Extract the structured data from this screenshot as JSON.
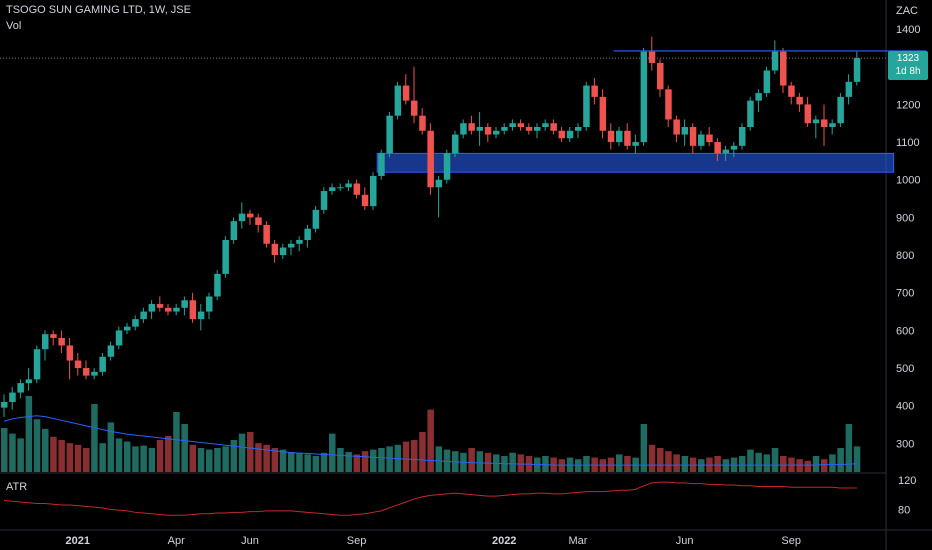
{
  "header": {
    "title": "TSOGO SUN GAMING LTD, 1W, JSE",
    "vol_label": "Vol",
    "atr_label": "ATR",
    "currency": "ZAC"
  },
  "last_price": {
    "value": "1323",
    "countdown": "1d 8h"
  },
  "colors": {
    "up": "#26a69a",
    "down": "#ef5350",
    "zone": "#2962ff",
    "line": "#2962ff",
    "atr": "#c62828"
  },
  "chart_data": {
    "type": "candlestick",
    "price_axis": {
      "ticks": [
        1400,
        1300,
        1200,
        1100,
        1000,
        900,
        800,
        700,
        600,
        500,
        400,
        300
      ],
      "range": [
        240,
        1440
      ]
    },
    "atr_axis": {
      "ticks": [
        120,
        80
      ],
      "range": [
        52,
        128
      ]
    },
    "x_ticks": [
      {
        "label": "2021",
        "index": 9,
        "bold": true
      },
      {
        "label": "Apr",
        "index": 21
      },
      {
        "label": "Jun",
        "index": 30
      },
      {
        "label": "Sep",
        "index": 43
      },
      {
        "label": "2022",
        "index": 61,
        "bold": true
      },
      {
        "label": "Mar",
        "index": 70
      },
      {
        "label": "Jun",
        "index": 83
      },
      {
        "label": "Sep",
        "index": 96
      }
    ],
    "resistance_level": {
      "value": 1342,
      "from_index": 78,
      "to_index": 110
    },
    "support_zone": {
      "low": 1020,
      "high": 1070,
      "from_index": 46,
      "to_index": 108
    },
    "candles": [
      [
        395,
        430,
        370,
        410
      ],
      [
        410,
        450,
        390,
        435
      ],
      [
        435,
        470,
        420,
        460
      ],
      [
        460,
        500,
        440,
        470
      ],
      [
        470,
        560,
        460,
        550
      ],
      [
        550,
        600,
        520,
        590
      ],
      [
        590,
        600,
        560,
        580
      ],
      [
        580,
        600,
        540,
        560
      ],
      [
        560,
        580,
        470,
        520
      ],
      [
        520,
        540,
        480,
        500
      ],
      [
        500,
        520,
        470,
        480
      ],
      [
        480,
        500,
        470,
        490
      ],
      [
        490,
        540,
        480,
        530
      ],
      [
        530,
        570,
        520,
        560
      ],
      [
        560,
        610,
        550,
        600
      ],
      [
        600,
        620,
        590,
        610
      ],
      [
        610,
        640,
        600,
        630
      ],
      [
        630,
        660,
        620,
        650
      ],
      [
        650,
        680,
        630,
        670
      ],
      [
        670,
        690,
        650,
        660
      ],
      [
        660,
        670,
        640,
        650
      ],
      [
        650,
        670,
        640,
        660
      ],
      [
        660,
        690,
        640,
        680
      ],
      [
        680,
        700,
        620,
        630
      ],
      [
        630,
        670,
        600,
        650
      ],
      [
        650,
        700,
        630,
        690
      ],
      [
        690,
        760,
        680,
        750
      ],
      [
        750,
        850,
        740,
        840
      ],
      [
        840,
        900,
        830,
        890
      ],
      [
        890,
        940,
        870,
        910
      ],
      [
        910,
        920,
        880,
        900
      ],
      [
        900,
        910,
        860,
        880
      ],
      [
        880,
        890,
        820,
        830
      ],
      [
        830,
        840,
        780,
        800
      ],
      [
        800,
        830,
        790,
        820
      ],
      [
        820,
        840,
        800,
        830
      ],
      [
        830,
        850,
        810,
        840
      ],
      [
        840,
        880,
        820,
        870
      ],
      [
        870,
        930,
        860,
        920
      ],
      [
        920,
        980,
        910,
        970
      ],
      [
        970,
        990,
        960,
        980
      ],
      [
        980,
        990,
        970,
        980
      ],
      [
        980,
        1000,
        970,
        990
      ],
      [
        990,
        1000,
        950,
        960
      ],
      [
        960,
        980,
        920,
        930
      ],
      [
        930,
        1020,
        920,
        1010
      ],
      [
        1010,
        1080,
        1000,
        1070
      ],
      [
        1070,
        1180,
        1060,
        1170
      ],
      [
        1170,
        1260,
        1160,
        1250
      ],
      [
        1250,
        1280,
        1200,
        1210
      ],
      [
        1210,
        1300,
        1150,
        1170
      ],
      [
        1170,
        1190,
        1120,
        1130
      ],
      [
        1130,
        1150,
        960,
        980
      ],
      [
        980,
        1010,
        900,
        1000
      ],
      [
        1000,
        1080,
        990,
        1070
      ],
      [
        1070,
        1130,
        1060,
        1120
      ],
      [
        1120,
        1160,
        1110,
        1150
      ],
      [
        1150,
        1170,
        1120,
        1130
      ],
      [
        1130,
        1180,
        1090,
        1140
      ],
      [
        1140,
        1150,
        1100,
        1120
      ],
      [
        1120,
        1140,
        1110,
        1130
      ],
      [
        1130,
        1150,
        1120,
        1140
      ],
      [
        1140,
        1160,
        1130,
        1150
      ],
      [
        1150,
        1160,
        1130,
        1140
      ],
      [
        1140,
        1150,
        1120,
        1130
      ],
      [
        1130,
        1150,
        1110,
        1140
      ],
      [
        1140,
        1160,
        1130,
        1150
      ],
      [
        1150,
        1160,
        1120,
        1130
      ],
      [
        1130,
        1140,
        1100,
        1110
      ],
      [
        1110,
        1140,
        1100,
        1130
      ],
      [
        1130,
        1150,
        1110,
        1140
      ],
      [
        1140,
        1260,
        1130,
        1250
      ],
      [
        1250,
        1270,
        1200,
        1220
      ],
      [
        1220,
        1240,
        1110,
        1130
      ],
      [
        1130,
        1150,
        1080,
        1100
      ],
      [
        1100,
        1140,
        1090,
        1130
      ],
      [
        1130,
        1150,
        1080,
        1090
      ],
      [
        1090,
        1120,
        1070,
        1100
      ],
      [
        1100,
        1350,
        1090,
        1340
      ],
      [
        1340,
        1380,
        1290,
        1310
      ],
      [
        1310,
        1320,
        1220,
        1240
      ],
      [
        1240,
        1250,
        1140,
        1160
      ],
      [
        1160,
        1170,
        1100,
        1120
      ],
      [
        1120,
        1160,
        1090,
        1140
      ],
      [
        1140,
        1150,
        1070,
        1090
      ],
      [
        1090,
        1130,
        1080,
        1120
      ],
      [
        1120,
        1140,
        1090,
        1100
      ],
      [
        1100,
        1110,
        1050,
        1070
      ],
      [
        1070,
        1090,
        1050,
        1080
      ],
      [
        1080,
        1100,
        1060,
        1090
      ],
      [
        1090,
        1150,
        1080,
        1140
      ],
      [
        1140,
        1220,
        1130,
        1210
      ],
      [
        1210,
        1240,
        1180,
        1230
      ],
      [
        1230,
        1300,
        1220,
        1290
      ],
      [
        1290,
        1370,
        1280,
        1340
      ],
      [
        1340,
        1350,
        1230,
        1250
      ],
      [
        1250,
        1260,
        1200,
        1220
      ],
      [
        1220,
        1230,
        1180,
        1200
      ],
      [
        1200,
        1220,
        1140,
        1150
      ],
      [
        1150,
        1170,
        1110,
        1160
      ],
      [
        1160,
        1200,
        1090,
        1140
      ],
      [
        1140,
        1160,
        1120,
        1150
      ],
      [
        1150,
        1230,
        1140,
        1220
      ],
      [
        1220,
        1280,
        1200,
        1260
      ],
      [
        1260,
        1340,
        1250,
        1323
      ]
    ],
    "volume_ma": [
      110,
      115,
      118,
      120,
      122,
      120,
      116,
      112,
      108,
      104,
      100,
      96,
      92,
      88,
      85,
      82,
      80,
      78,
      76,
      74,
      72,
      70,
      68,
      66,
      64,
      62,
      60,
      58,
      56,
      54,
      52,
      50,
      48,
      46,
      44,
      42,
      41,
      40,
      39,
      38,
      37,
      36,
      35,
      34,
      33,
      32,
      31,
      30,
      29,
      28,
      27,
      26,
      25,
      24,
      23,
      22,
      21,
      20,
      20,
      19,
      19,
      18,
      18,
      17,
      17,
      16,
      16,
      15,
      15,
      15,
      15,
      15,
      15,
      15,
      15,
      15,
      15,
      15,
      15,
      15,
      15,
      15,
      15,
      15,
      15,
      15,
      15,
      15,
      15,
      15,
      15,
      15,
      15,
      15,
      15,
      15,
      15,
      15,
      15,
      15,
      16,
      16,
      16,
      17,
      18
    ],
    "volume": [
      0.55,
      0.48,
      0.42,
      0.95,
      0.66,
      0.54,
      0.44,
      0.4,
      0.36,
      0.34,
      0.3,
      0.85,
      0.36,
      0.62,
      0.42,
      0.38,
      0.32,
      0.33,
      0.3,
      0.4,
      0.45,
      0.75,
      0.6,
      0.34,
      0.3,
      0.28,
      0.3,
      0.32,
      0.4,
      0.48,
      0.5,
      0.36,
      0.34,
      0.3,
      0.28,
      0.25,
      0.24,
      0.22,
      0.2,
      0.24,
      0.48,
      0.3,
      0.25,
      0.22,
      0.26,
      0.28,
      0.3,
      0.32,
      0.34,
      0.38,
      0.4,
      0.5,
      0.78,
      0.32,
      0.28,
      0.26,
      0.24,
      0.3,
      0.26,
      0.24,
      0.22,
      0.2,
      0.24,
      0.22,
      0.2,
      0.18,
      0.2,
      0.18,
      0.16,
      0.18,
      0.16,
      0.2,
      0.18,
      0.16,
      0.18,
      0.22,
      0.2,
      0.18,
      0.6,
      0.34,
      0.3,
      0.26,
      0.22,
      0.2,
      0.18,
      0.16,
      0.18,
      0.2,
      0.16,
      0.18,
      0.2,
      0.28,
      0.24,
      0.22,
      0.3,
      0.2,
      0.18,
      0.16,
      0.14,
      0.2,
      0.16,
      0.22,
      0.3,
      0.6,
      0.32
    ],
    "atr": [
      92,
      91,
      90,
      89,
      88,
      88,
      87,
      86,
      86,
      85,
      84,
      83,
      82,
      80,
      79,
      78,
      76,
      75,
      74,
      73,
      72,
      72,
      72,
      73,
      74,
      74,
      75,
      75,
      76,
      76,
      77,
      77,
      78,
      78,
      78,
      78,
      77,
      76,
      75,
      74,
      73,
      72,
      72,
      73,
      74,
      76,
      78,
      82,
      86,
      90,
      94,
      97,
      99,
      100,
      101,
      102,
      101,
      100,
      99,
      98,
      98,
      99,
      100,
      101,
      101,
      102,
      102,
      101,
      101,
      102,
      103,
      104,
      104,
      104,
      105,
      106,
      106,
      107,
      112,
      116,
      117,
      117,
      116,
      116,
      115,
      115,
      114,
      114,
      113,
      113,
      112,
      112,
      111,
      111,
      111,
      111,
      110,
      110,
      110,
      110,
      110,
      110,
      109,
      109,
      109
    ]
  }
}
